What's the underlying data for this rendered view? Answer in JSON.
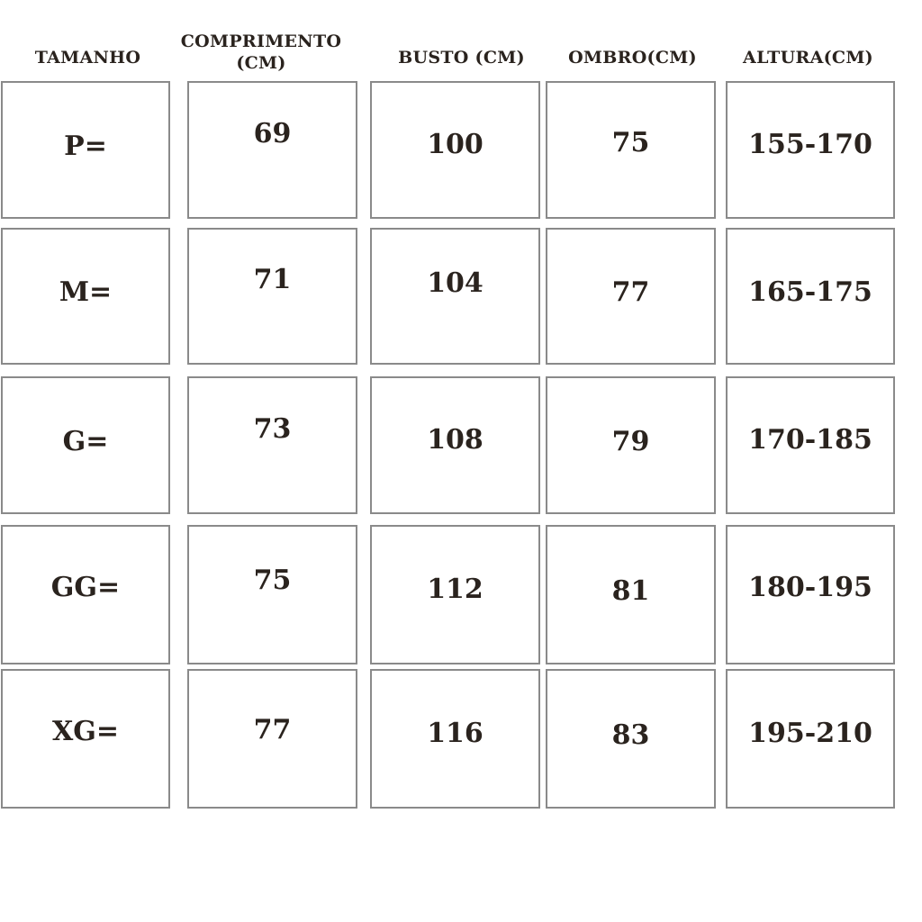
{
  "headers_display": {
    "tamanho": "TAMANHO",
    "comprimento_line1": "COMPRIMENTO",
    "comprimento_line2": "(CM)",
    "busto": "BUSTO (CM)",
    "ombro": "OMBRO(CM)",
    "altura": "ALTURA(CM)"
  },
  "rows": [
    [
      "P=",
      "69",
      "100",
      "75",
      "155-170"
    ],
    [
      "M=",
      "71",
      "104",
      "77",
      "165-175"
    ],
    [
      "G=",
      "73",
      "108",
      "79",
      "170-185"
    ],
    [
      "GG=",
      "75",
      "112",
      "81",
      "180-195"
    ],
    [
      "XG=",
      "77",
      "116",
      "83",
      "195-210"
    ]
  ],
  "colors": {
    "text": "#2a231e",
    "border": "#8a8a8a"
  }
}
